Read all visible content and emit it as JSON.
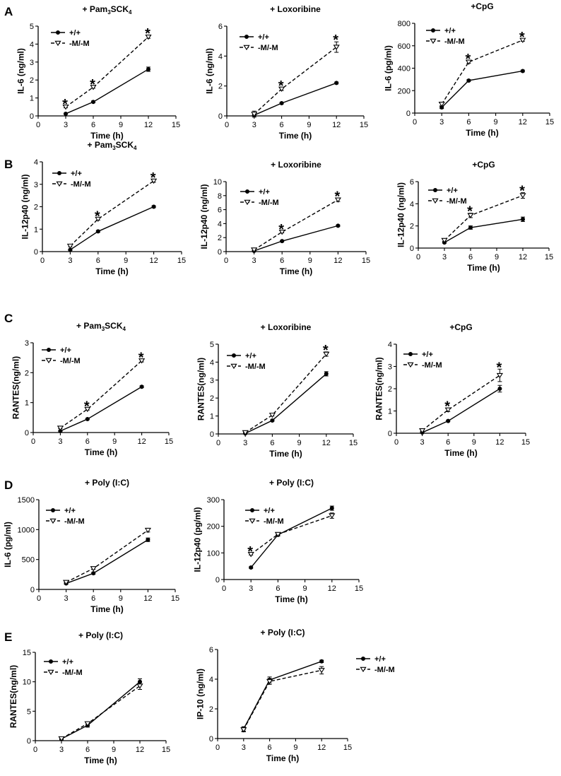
{
  "panel_letters": [
    "A",
    "B",
    "C",
    "D",
    "E"
  ],
  "legend": {
    "series_1": "+/+",
    "series_2": "-M/-M"
  },
  "chart_data": [
    {
      "id": "A1",
      "panel": "A",
      "type": "line",
      "title": {
        "main": "+ Pam",
        "sub": "3",
        "rest": "SCK",
        "sub2": "4"
      },
      "xlabel": "Time (h)",
      "ylabel": "IL-6 (ng/ml)",
      "xlim": [
        0,
        15
      ],
      "xticks": [
        0,
        3,
        6,
        9,
        12,
        15
      ],
      "ylim": [
        0,
        5
      ],
      "yticks": [
        0,
        1,
        2,
        3,
        4,
        5
      ],
      "x": [
        3,
        6,
        12
      ],
      "series": [
        {
          "name": "+/+",
          "values": [
            0.12,
            0.78,
            2.6
          ],
          "errors": [
            0.03,
            0.05,
            0.12
          ]
        },
        {
          "name": "-M/-M",
          "values": [
            0.5,
            1.6,
            4.4
          ],
          "errors": [
            0.05,
            0.06,
            0.08
          ]
        }
      ],
      "significance": [
        "*",
        "*",
        "*"
      ]
    },
    {
      "id": "A2",
      "panel": "A",
      "type": "line",
      "title": {
        "main": "+ Loxoribine"
      },
      "xlabel": "Time (h)",
      "ylabel": "IL-6 (ng/ml)",
      "xlim": [
        0,
        15
      ],
      "xticks": [
        0,
        3,
        6,
        9,
        12,
        15
      ],
      "ylim": [
        0,
        6
      ],
      "yticks": [
        0,
        2,
        4,
        6
      ],
      "x": [
        3,
        6,
        12
      ],
      "series": [
        {
          "name": "+/+",
          "values": [
            0.05,
            0.85,
            2.2
          ],
          "errors": [
            0.03,
            0.05,
            0.06
          ]
        },
        {
          "name": "-M/-M",
          "values": [
            0.12,
            1.8,
            4.6
          ],
          "errors": [
            0.2,
            0.1,
            0.35
          ]
        }
      ],
      "significance": [
        "",
        "*",
        "*"
      ]
    },
    {
      "id": "A3",
      "panel": "A",
      "type": "line",
      "title": {
        "main": "+CpG"
      },
      "xlabel": "Time (h)",
      "ylabel": "IL-6 (pg/ml)",
      "xlim": [
        0,
        15
      ],
      "xticks": [
        0,
        3,
        6,
        9,
        12,
        15
      ],
      "ylim": [
        0,
        800
      ],
      "yticks": [
        0,
        200,
        400,
        600,
        800
      ],
      "x": [
        3,
        6,
        12
      ],
      "series": [
        {
          "name": "+/+",
          "values": [
            50,
            290,
            375
          ],
          "errors": [
            10,
            8,
            8
          ]
        },
        {
          "name": "-M/-M",
          "values": [
            80,
            455,
            650
          ],
          "errors": [
            15,
            12,
            10
          ]
        }
      ],
      "significance": [
        "",
        "*",
        "*"
      ]
    },
    {
      "id": "B1",
      "panel": "B",
      "type": "line",
      "title": {
        "main": "+ Pam",
        "sub": "3",
        "rest": "SCK",
        "sub2": "4"
      },
      "xlabel": "Time (h)",
      "ylabel": "IL-12p40 (ng/ml)",
      "xlim": [
        0,
        15
      ],
      "xticks": [
        0,
        3,
        6,
        9,
        12,
        15
      ],
      "ylim": [
        0,
        4
      ],
      "yticks": [
        0,
        1,
        2,
        3,
        4
      ],
      "x": [
        3,
        6,
        12
      ],
      "series": [
        {
          "name": "+/+",
          "values": [
            0.08,
            0.9,
            2.0
          ],
          "errors": [
            0.03,
            0.04,
            0.04
          ]
        },
        {
          "name": "-M/-M",
          "values": [
            0.25,
            1.45,
            3.15
          ],
          "errors": [
            0.04,
            0.05,
            0.06
          ]
        }
      ],
      "significance": [
        "",
        "*",
        "*"
      ]
    },
    {
      "id": "B2",
      "panel": "B",
      "type": "line",
      "title": {
        "main": "+ Loxoribine"
      },
      "xlabel": "Time (h)",
      "ylabel": "IL-12p40 (ng/ml)",
      "xlim": [
        0,
        15
      ],
      "xticks": [
        0,
        3,
        6,
        9,
        12,
        15
      ],
      "ylim": [
        0,
        10
      ],
      "yticks": [
        0,
        2,
        4,
        6,
        8,
        10
      ],
      "x": [
        3,
        6,
        12
      ],
      "series": [
        {
          "name": "+/+",
          "values": [
            0.1,
            1.5,
            3.7
          ],
          "errors": [
            0.05,
            0.08,
            0.1
          ]
        },
        {
          "name": "-M/-M",
          "values": [
            0.25,
            2.8,
            7.4
          ],
          "errors": [
            0.1,
            0.12,
            0.25
          ]
        }
      ],
      "significance": [
        "",
        "*",
        "*"
      ]
    },
    {
      "id": "B3",
      "panel": "B",
      "type": "line",
      "title": {
        "main": "+CpG"
      },
      "xlabel": "Time (h)",
      "ylabel": "IL-12p40 (ng/ml)",
      "xlim": [
        0,
        15
      ],
      "xticks": [
        0,
        3,
        6,
        9,
        12,
        15
      ],
      "ylim": [
        0,
        6
      ],
      "yticks": [
        0,
        2,
        4,
        6
      ],
      "x": [
        3,
        6,
        12
      ],
      "series": [
        {
          "name": "+/+",
          "values": [
            0.5,
            1.85,
            2.6
          ],
          "errors": [
            0.05,
            0.15,
            0.2
          ]
        },
        {
          "name": "-M/-M",
          "values": [
            0.7,
            2.95,
            4.75
          ],
          "errors": [
            0.1,
            0.2,
            0.25
          ]
        }
      ],
      "significance": [
        "",
        "*",
        "*"
      ]
    },
    {
      "id": "C1",
      "panel": "C",
      "type": "line",
      "title": {
        "main": "+ Pam",
        "sub": "3",
        "rest": "SCK",
        "sub2": "4"
      },
      "xlabel": "Time (h)",
      "ylabel": "RANTES(ng/ml)",
      "xlim": [
        0,
        15
      ],
      "xticks": [
        0,
        3,
        6,
        9,
        12,
        15
      ],
      "ylim": [
        0,
        3
      ],
      "yticks": [
        0,
        1,
        2,
        3
      ],
      "x": [
        3,
        6,
        12
      ],
      "series": [
        {
          "name": "+/+",
          "values": [
            0.05,
            0.45,
            1.53
          ],
          "errors": [
            0.02,
            0.02,
            0.03
          ]
        },
        {
          "name": "-M/-M",
          "values": [
            0.15,
            0.78,
            2.4
          ],
          "errors": [
            0.02,
            0.03,
            0.04
          ]
        }
      ],
      "significance": [
        "",
        "*",
        "*"
      ]
    },
    {
      "id": "C2",
      "panel": "C",
      "type": "line",
      "title": {
        "main": "+ Loxoribine"
      },
      "xlabel": "Time (h)",
      "ylabel": "RANTES(ng/ml)",
      "xlim": [
        0,
        15
      ],
      "xticks": [
        0,
        3,
        6,
        9,
        12,
        15
      ],
      "ylim": [
        0,
        5
      ],
      "yticks": [
        0,
        1,
        2,
        3,
        4,
        5
      ],
      "x": [
        3,
        6,
        12
      ],
      "series": [
        {
          "name": "+/+",
          "values": [
            0.03,
            0.75,
            3.35
          ],
          "errors": [
            0.02,
            0.04,
            0.12
          ]
        },
        {
          "name": "-M/-M",
          "values": [
            0.08,
            1.05,
            4.45
          ],
          "errors": [
            0.02,
            0.05,
            0.12
          ]
        }
      ],
      "significance": [
        "",
        "",
        "*"
      ]
    },
    {
      "id": "C3",
      "panel": "C",
      "type": "line",
      "title": {
        "main": "+CpG"
      },
      "xlabel": "Time (h)",
      "ylabel": "RANTES(ng/ml)",
      "xlim": [
        0,
        15
      ],
      "xticks": [
        0,
        3,
        6,
        9,
        12,
        15
      ],
      "ylim": [
        0,
        4
      ],
      "yticks": [
        0,
        1,
        2,
        3,
        4
      ],
      "x": [
        3,
        6,
        12
      ],
      "series": [
        {
          "name": "+/+",
          "values": [
            0.03,
            0.55,
            2.0
          ],
          "errors": [
            0.02,
            0.03,
            0.15
          ]
        },
        {
          "name": "-M/-M",
          "values": [
            0.12,
            1.05,
            2.6
          ],
          "errors": [
            0.03,
            0.08,
            0.28
          ]
        }
      ],
      "significance": [
        "",
        "*",
        "*"
      ]
    },
    {
      "id": "D1",
      "panel": "D",
      "type": "line",
      "title": {
        "main": "+ Poly (I:C)"
      },
      "xlabel": "Time (h)",
      "ylabel": "IL-6 (pg/ml)",
      "xlim": [
        0,
        15
      ],
      "xticks": [
        0,
        3,
        6,
        9,
        12,
        15
      ],
      "ylim": [
        0,
        1500
      ],
      "yticks": [
        0,
        500,
        1000,
        1500
      ],
      "x": [
        3,
        6,
        12
      ],
      "series": [
        {
          "name": "+/+",
          "values": [
            100,
            270,
            830
          ],
          "errors": [
            15,
            15,
            30
          ]
        },
        {
          "name": "-M/-M",
          "values": [
            120,
            350,
            990
          ],
          "errors": [
            15,
            15,
            30
          ]
        }
      ],
      "significance": [
        "",
        "",
        ""
      ]
    },
    {
      "id": "D2",
      "panel": "D",
      "type": "line",
      "title": {
        "main": "+ Poly (I:C)"
      },
      "xlabel": "Time (h)",
      "ylabel": "IL-12p40 (pg/ml)",
      "xlim": [
        0,
        15
      ],
      "xticks": [
        0,
        3,
        6,
        9,
        12,
        15
      ],
      "ylim": [
        0,
        300
      ],
      "yticks": [
        0,
        100,
        200,
        300
      ],
      "x": [
        3,
        6,
        12
      ],
      "series": [
        {
          "name": "+/+",
          "values": [
            45,
            168,
            268
          ],
          "errors": [
            3,
            5,
            8
          ]
        },
        {
          "name": "-M/-M",
          "values": [
            95,
            170,
            240
          ],
          "errors": [
            3,
            5,
            10
          ]
        }
      ],
      "significance": [
        "*",
        "",
        ""
      ]
    },
    {
      "id": "E1",
      "panel": "E",
      "type": "line",
      "title": {
        "main": "+ Poly (I:C)"
      },
      "xlabel": "Time (h)",
      "ylabel": "RANTES(ng/ml)",
      "xlim": [
        0,
        15
      ],
      "xticks": [
        0,
        3,
        6,
        9,
        12,
        15
      ],
      "ylim": [
        0,
        15
      ],
      "yticks": [
        0,
        5,
        10,
        15
      ],
      "x": [
        3,
        6,
        12
      ],
      "series": [
        {
          "name": "+/+",
          "values": [
            0.3,
            2.6,
            10.0
          ],
          "errors": [
            0.15,
            0.3,
            0.5
          ]
        },
        {
          "name": "-M/-M",
          "values": [
            0.35,
            2.9,
            9.3
          ],
          "errors": [
            0.15,
            0.3,
            0.6
          ]
        }
      ],
      "significance": [
        "",
        "",
        ""
      ]
    },
    {
      "id": "E2",
      "panel": "E",
      "type": "line",
      "title": {
        "main": "+ Poly (I:C)"
      },
      "xlabel": "Time (h)",
      "ylabel": "IP-10 (ng/ml)",
      "xlim": [
        0,
        15
      ],
      "xticks": [
        0,
        3,
        6,
        9,
        12,
        15
      ],
      "ylim": [
        0,
        6
      ],
      "yticks": [
        0,
        2,
        4,
        6
      ],
      "x": [
        3,
        6,
        12
      ],
      "series": [
        {
          "name": "+/+",
          "values": [
            0.65,
            3.95,
            5.2
          ],
          "errors": [
            0.15,
            0.2,
            0.08
          ]
        },
        {
          "name": "-M/-M",
          "values": [
            0.6,
            3.85,
            4.6
          ],
          "errors": [
            0.15,
            0.2,
            0.25
          ]
        }
      ],
      "significance": [
        "",
        "",
        ""
      ]
    }
  ]
}
